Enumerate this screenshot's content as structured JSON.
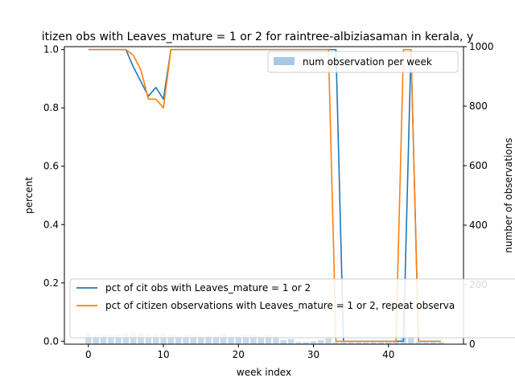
{
  "chart_data": {
    "type": "line",
    "title": "itizen obs with Leaves_mature = 1 or 2 for raintree-albiziasaman in kerala, y",
    "xlabel": "week index",
    "ylabel": "percent",
    "y2label": "number of observations",
    "xlim": [
      -3.2,
      50
    ],
    "ylim": [
      -0.01,
      1.01
    ],
    "y2lim": [
      0,
      1000
    ],
    "xticks": [
      0,
      10,
      20,
      30,
      40
    ],
    "yticks": [
      0.0,
      0.2,
      0.4,
      0.6,
      0.8,
      1.0
    ],
    "y2ticks": [
      0,
      200,
      400,
      600,
      800,
      1000
    ],
    "x": [
      0,
      1,
      2,
      3,
      4,
      5,
      6,
      7,
      8,
      9,
      10,
      11,
      12,
      13,
      14,
      15,
      16,
      17,
      18,
      19,
      20,
      21,
      22,
      23,
      24,
      25,
      26,
      27,
      28,
      29,
      30,
      31,
      32,
      33,
      34,
      35,
      36,
      37,
      38,
      39,
      40,
      41,
      42,
      43,
      44,
      45,
      46,
      47
    ],
    "series": [
      {
        "name": "pct of cit obs with Leaves_mature = 1 or 2",
        "color": "#1f77b4",
        "axis": "left",
        "values": [
          1,
          1,
          1,
          1,
          1,
          1,
          0.94,
          0.89,
          0.84,
          0.87,
          0.83,
          1,
          1,
          1,
          1,
          1,
          1,
          1,
          1,
          1,
          1,
          1,
          1,
          1,
          1,
          1,
          1,
          1,
          1,
          1,
          1,
          1,
          1,
          1,
          0,
          0,
          0,
          0,
          0,
          0,
          0,
          0,
          0,
          1,
          0,
          0,
          0,
          0
        ]
      },
      {
        "name": "pct of citizen observations with Leaves_mature = 1 or 2, repeat observa",
        "color": "#ff7f0e",
        "axis": "left",
        "values": [
          1,
          1,
          1,
          1,
          1,
          1,
          0.98,
          0.93,
          0.83,
          0.83,
          0.8,
          1,
          1,
          1,
          1,
          1,
          1,
          1,
          1,
          1,
          1,
          1,
          1,
          1,
          1,
          1,
          1,
          1,
          1,
          1,
          1,
          1,
          1,
          0,
          0,
          0,
          0,
          0,
          0,
          0,
          0,
          0,
          1,
          1,
          0,
          0,
          0,
          0
        ]
      },
      {
        "name": "num observation per week",
        "type": "bar",
        "color": "#a6c8e4",
        "axis": "right",
        "values": [
          38,
          33,
          36,
          31,
          33,
          38,
          43,
          38,
          36,
          33,
          38,
          31,
          29,
          31,
          31,
          29,
          29,
          31,
          36,
          29,
          29,
          31,
          31,
          26,
          31,
          26,
          14,
          17,
          7,
          7,
          10,
          14,
          19,
          7,
          7,
          7,
          7,
          7,
          7,
          7,
          7,
          12,
          26,
          24,
          7,
          7,
          7,
          7
        ]
      }
    ],
    "legend_upper": {
      "position": "top-right",
      "label": "num observation per week"
    },
    "legend_lower": {
      "position": "bottom-left"
    }
  }
}
